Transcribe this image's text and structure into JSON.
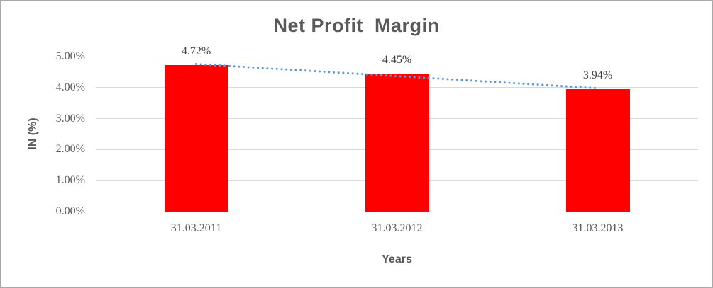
{
  "chart_data": {
    "type": "bar",
    "title": "Net Profit  Margin",
    "categories": [
      "31.03.2011",
      "31.03.2012",
      "31.03.2013"
    ],
    "values": [
      4.72,
      4.45,
      3.94
    ],
    "data_labels": [
      "4.72%",
      "4.45%",
      "3.94%"
    ],
    "xlabel": "Years",
    "ylabel": "IN (%)",
    "ylim": [
      0,
      5
    ],
    "ytick_step": 1,
    "yticks": [
      {
        "value": 0,
        "label": "0.00%"
      },
      {
        "value": 1,
        "label": "1.00%"
      },
      {
        "value": 2,
        "label": "2.00%"
      },
      {
        "value": 3,
        "label": "3.00%"
      },
      {
        "value": 4,
        "label": "4.00%"
      },
      {
        "value": 5,
        "label": "5.00%"
      }
    ],
    "grid": true,
    "legend": "none",
    "trendline": {
      "type": "linear",
      "style": "dotted"
    },
    "colors": {
      "bar": "#FF0000",
      "trendline": "#5B9BD5",
      "title_text": "#595959",
      "axis_title_text": "#595959",
      "tick_text": "#595959",
      "data_label_text": "#404040",
      "gridline": "#D9D9D9",
      "frame": "#A9A9A9",
      "background": "#FFFFFF"
    }
  }
}
